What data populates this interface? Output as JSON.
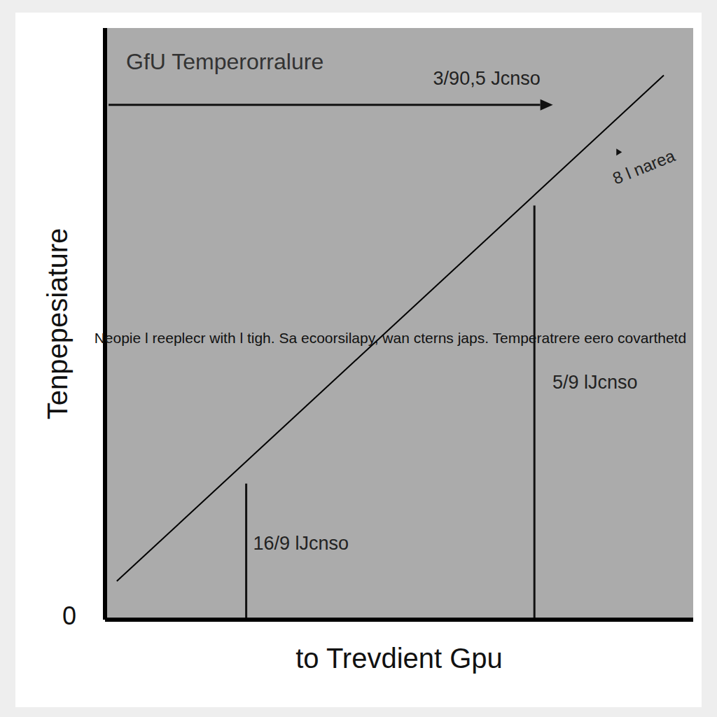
{
  "chart_data": {
    "type": "line",
    "title": "GfU Temperorralure",
    "x_label": "to Trevdient Gpu",
    "y_label": "Tenpepesiature",
    "x": [
      2,
      95
    ],
    "values": [
      6.5,
      92
    ],
    "color": "#000000",
    "xlim": [
      0,
      100
    ],
    "ylim": [
      0,
      100
    ],
    "yticks": [
      0
    ],
    "tick_labels": "y",
    "grid": false,
    "line_label": "Neopie l reeplecr with l tigh. Sa ecoorsilapy, wan cterns japs. Temperatrere eero covarthetd",
    "vertical_lines": [
      {
        "x": 24,
        "y": 23,
        "label": "16/9 lJcnso",
        "label_x": 33.3,
        "label_y": 12.7
      },
      {
        "x": 73,
        "y": 70,
        "label": "5/9 lJcnso",
        "label_x": 83.3,
        "label_y": 39.9
      }
    ],
    "arrow": {
      "y": 87,
      "x": [
        0.6,
        74
      ],
      "label": "3/90,5 Jcnso",
      "label_x": 64.9,
      "label_y": 91.3
    },
    "annotations": [
      {
        "text": "8 l narea",
        "x": 91.7,
        "y": 76.3
      }
    ]
  }
}
